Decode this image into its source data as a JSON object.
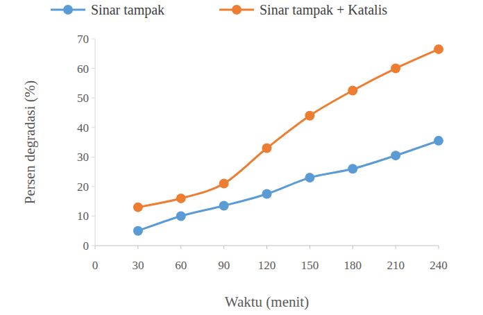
{
  "chart_data": {
    "type": "line",
    "x_label": "Waktu (menit)",
    "y_label": "Persen degradasi (%)",
    "x": [
      30,
      60,
      90,
      120,
      150,
      180,
      210,
      240
    ],
    "series": [
      {
        "name": "Sinar tampak",
        "color": "#5b9bd5",
        "marker": "circle",
        "line_style": "smooth",
        "values": [
          5,
          10,
          13.5,
          17.5,
          23,
          26,
          30.5,
          35.5
        ]
      },
      {
        "name": "Sinar tampak + Katalis",
        "color": "#ed7d31",
        "marker": "circle",
        "line_style": "smooth",
        "values": [
          13,
          16,
          21,
          33,
          44,
          52.5,
          60,
          66.5
        ]
      }
    ],
    "xlim": [
      0,
      240
    ],
    "xticks": [
      0,
      30,
      60,
      90,
      120,
      150,
      180,
      210,
      240
    ],
    "ylim": [
      0,
      70
    ],
    "yticks": [
      0,
      10,
      20,
      30,
      40,
      50,
      60,
      70
    ],
    "grid": false,
    "legend": "top"
  }
}
